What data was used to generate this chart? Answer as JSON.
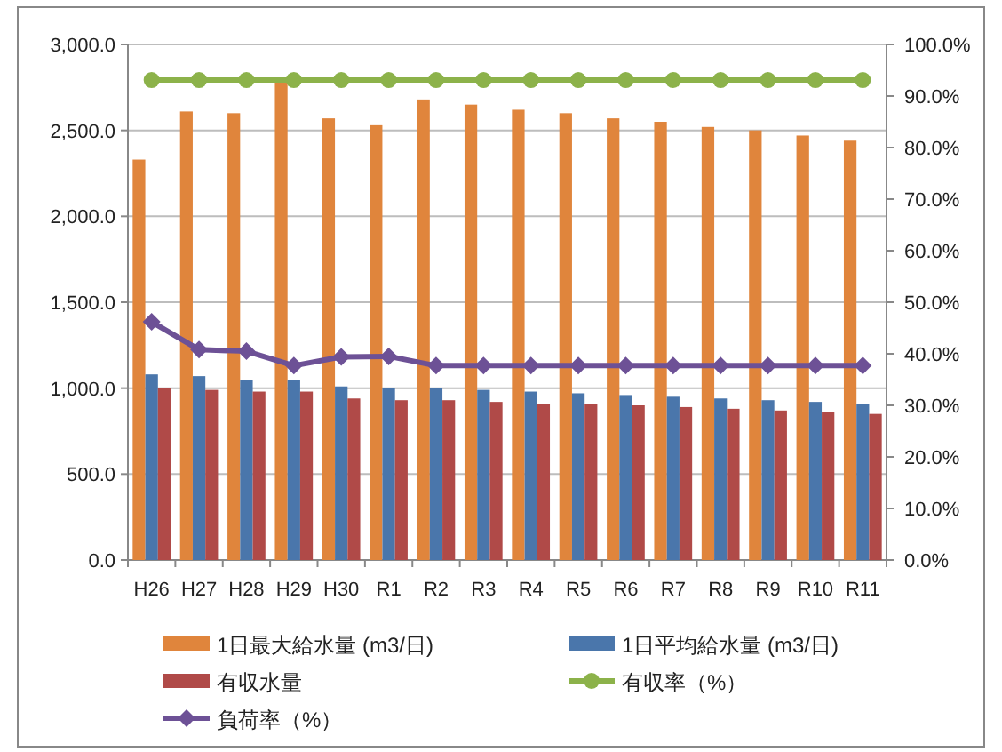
{
  "chart_data": {
    "type": "bar",
    "categories": [
      "H26",
      "H27",
      "H28",
      "H29",
      "H30",
      "R1",
      "R2",
      "R3",
      "R4",
      "R5",
      "R6",
      "R7",
      "R8",
      "R9",
      "R10",
      "R11"
    ],
    "series": [
      {
        "name": "1日最大給水量 (m3/日)",
        "color": "#e0853c",
        "values": [
          2330,
          2610,
          2600,
          2780,
          2570,
          2530,
          2680,
          2650,
          2620,
          2600,
          2570,
          2550,
          2520,
          2500,
          2470,
          2440
        ]
      },
      {
        "name": "1日平均給水量 (m3/日)",
        "color": "#4a76ab",
        "values": [
          1080,
          1070,
          1050,
          1050,
          1010,
          1000,
          1000,
          990,
          980,
          970,
          960,
          950,
          940,
          930,
          920,
          910
        ]
      },
      {
        "name": "有収水量",
        "color": "#b04a48",
        "values": [
          1000,
          990,
          980,
          980,
          940,
          930,
          930,
          920,
          910,
          910,
          900,
          890,
          880,
          870,
          860,
          850
        ]
      },
      {
        "name": "有収率（%）",
        "type": "line",
        "axis": "y2",
        "marker": "circle",
        "color": "#8cb24a",
        "values": [
          93.1,
          93.1,
          93.1,
          93.1,
          93.1,
          93.1,
          93.1,
          93.1,
          93.1,
          93.1,
          93.1,
          93.1,
          93.1,
          93.1,
          93.1,
          93.1
        ]
      },
      {
        "name": "負荷率（%）",
        "type": "line",
        "axis": "y2",
        "marker": "diamond",
        "color": "#6d5196",
        "values": [
          46.2,
          40.8,
          40.5,
          37.7,
          39.4,
          39.5,
          37.7,
          37.7,
          37.7,
          37.7,
          37.7,
          37.7,
          37.7,
          37.7,
          37.7,
          37.7
        ]
      }
    ],
    "ylim": [
      0,
      3000
    ],
    "yticks": [
      {
        "value": 0,
        "label": "0.0"
      },
      {
        "value": 500,
        "label": "500.0"
      },
      {
        "value": 1000,
        "label": "1,000.0"
      },
      {
        "value": 1500,
        "label": "1,500.0"
      },
      {
        "value": 2000,
        "label": "2,000.0"
      },
      {
        "value": 2500,
        "label": "2,500.0"
      },
      {
        "value": 3000,
        "label": "3,000.0"
      }
    ],
    "y2lim": [
      0,
      100
    ],
    "y2ticks": [
      {
        "value": 0,
        "label": "0.0%"
      },
      {
        "value": 10,
        "label": "10.0%"
      },
      {
        "value": 20,
        "label": "20.0%"
      },
      {
        "value": 30,
        "label": "30.0%"
      },
      {
        "value": 40,
        "label": "40.0%"
      },
      {
        "value": 50,
        "label": "50.0%"
      },
      {
        "value": 60,
        "label": "60.0%"
      },
      {
        "value": 70,
        "label": "70.0%"
      },
      {
        "value": 80,
        "label": "80.0%"
      },
      {
        "value": 90,
        "label": "90.0%"
      },
      {
        "value": 100,
        "label": "100.0%"
      }
    ],
    "grid": "y",
    "legend": "bottom"
  }
}
